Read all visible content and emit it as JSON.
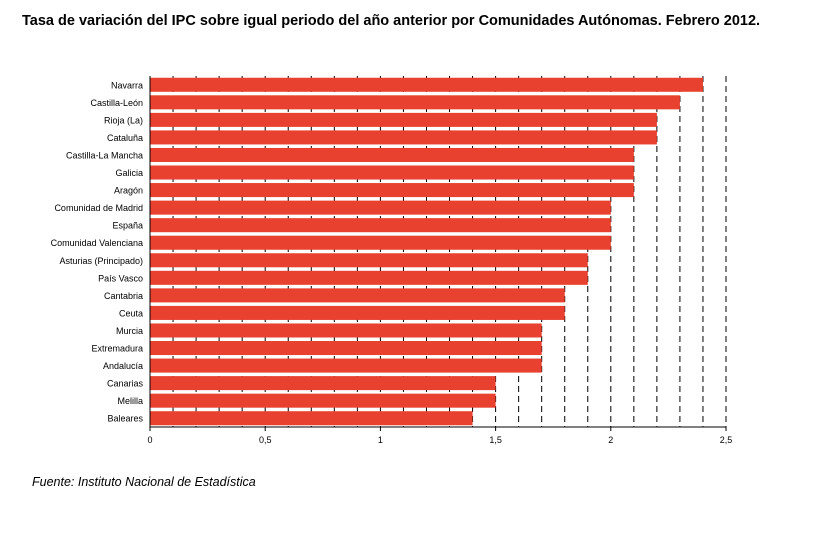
{
  "title": "Tasa de variación del IPC sobre igual periodo del año anterior por Comunidades Autónomas. Febrero 2012.",
  "source": "Fuente: Instituto Nacional de Estadística",
  "chart_data": {
    "type": "bar",
    "orientation": "horizontal",
    "categories": [
      "Navarra",
      "Castilla-León",
      "Rioja (La)",
      "Cataluña",
      "Castilla-La Mancha",
      "Galicia",
      "Aragón",
      "Comunidad de Madrid",
      "España",
      "Comunidad Valenciana",
      "Asturias (Principado)",
      "País Vasco",
      "Cantabria",
      "Ceuta",
      "Murcia",
      "Extremadura",
      "Andalucía",
      "Canarias",
      "Melilla",
      "Baleares"
    ],
    "values": [
      2.4,
      2.3,
      2.2,
      2.2,
      2.1,
      2.1,
      2.1,
      2.0,
      2.0,
      2.0,
      1.9,
      1.9,
      1.8,
      1.8,
      1.7,
      1.7,
      1.7,
      1.5,
      1.5,
      1.4
    ],
    "xlim": [
      0,
      2.5
    ],
    "xticks": [
      0,
      0.5,
      1,
      1.5,
      2,
      2.5
    ],
    "xtick_labels": [
      "0",
      "0,5",
      "1",
      "1,5",
      "2",
      "2,5"
    ],
    "gridlines": [
      0.1,
      0.2,
      0.3,
      0.4,
      0.5,
      0.6,
      0.7,
      0.8,
      0.9,
      1.0,
      1.1,
      1.2,
      1.3,
      1.4,
      1.5,
      1.6,
      1.7,
      1.8,
      1.9,
      2.0,
      2.1,
      2.2,
      2.3,
      2.4,
      2.5
    ],
    "grid": "vertical-dashed",
    "bar_color": "#e8412f",
    "legend": "none"
  }
}
